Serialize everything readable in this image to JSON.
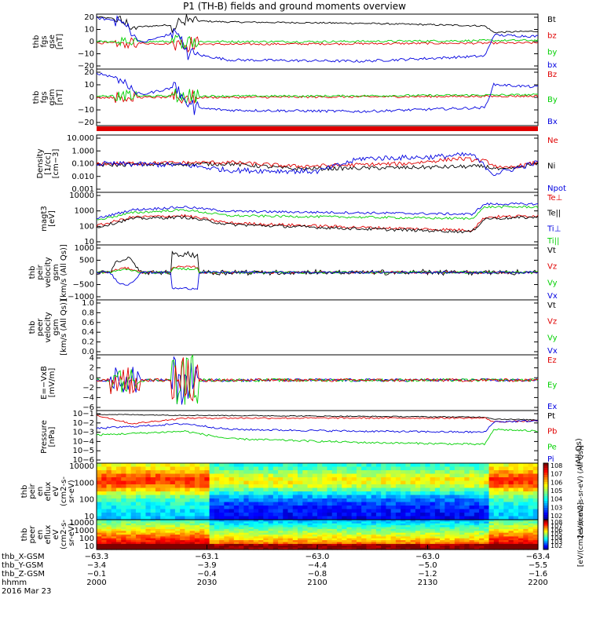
{
  "title": "P1 (TH-B) fields and ground moments overview",
  "colors": {
    "black": "#000000",
    "red": "#e00000",
    "green": "#00d000",
    "blue": "#0000e0"
  },
  "chart_data": [
    {
      "type": "line",
      "ylabel": [
        "thb",
        "fgs",
        "gse",
        "[nT]"
      ],
      "yticks": [
        "20",
        "10",
        "0",
        "−10",
        "−20"
      ],
      "ylim": [
        -20,
        22
      ],
      "series": [
        {
          "name": "Bt",
          "color": "black"
        },
        {
          "name": "bz",
          "color": "red"
        },
        {
          "name": "by",
          "color": "green"
        },
        {
          "name": "bx",
          "color": "blue"
        }
      ]
    },
    {
      "type": "line",
      "ylabel": [
        "thb",
        "fgs",
        "gsm",
        "[nT]"
      ],
      "yticks": [
        "20",
        "10",
        "0",
        "−10",
        "−20"
      ],
      "ylim": [
        -22,
        22
      ],
      "series": [
        {
          "name": "Bz",
          "color": "red"
        },
        {
          "name": "By",
          "color": "green"
        },
        {
          "name": "Bx",
          "color": "blue"
        }
      ]
    },
    {
      "type": "line",
      "log": true,
      "ylabel": [
        "Density",
        "[1/cc]",
        "[cm−3]"
      ],
      "yticks": [
        "10.000",
        "1.000",
        "0.100",
        "0.010",
        "0.001"
      ],
      "series": [
        {
          "name": "Ne",
          "color": "red"
        },
        {
          "name": "Ni",
          "color": "black"
        },
        {
          "name": "Npot",
          "color": "blue"
        }
      ]
    },
    {
      "type": "line",
      "log": true,
      "ylabel": [
        "magt3",
        "[eV]"
      ],
      "yticks": [
        "10000",
        "1000",
        "100",
        "10"
      ],
      "series": [
        {
          "name": "Te⊥",
          "color": "red"
        },
        {
          "name": "Te||",
          "color": "black"
        },
        {
          "name": "Ti⊥",
          "color": "blue"
        },
        {
          "name": "Ti||",
          "color": "green"
        }
      ]
    },
    {
      "type": "line",
      "ylabel": [
        "thb",
        "peir",
        "velocity",
        "gsm",
        "[km/s (All Qs)]"
      ],
      "yticks": [
        "1000",
        "500",
        "0",
        "−500",
        "−1000"
      ],
      "ylim": [
        -1000,
        1000
      ],
      "series": [
        {
          "name": "Vt",
          "color": "black"
        },
        {
          "name": "Vz",
          "color": "red"
        },
        {
          "name": "Vy",
          "color": "green"
        },
        {
          "name": "Vx",
          "color": "blue"
        }
      ]
    },
    {
      "type": "line",
      "ylabel": [
        "thb",
        "peer",
        "velocity",
        "gsm",
        "[km/s (All Qs)]"
      ],
      "yticks": [
        "1.0",
        "0.8",
        "0.6",
        "0.4",
        "0.2",
        "0.0"
      ],
      "ylim": [
        0,
        1
      ],
      "series": [
        {
          "name": "Vt",
          "color": "black"
        },
        {
          "name": "Vz",
          "color": "red"
        },
        {
          "name": "Vy",
          "color": "green"
        },
        {
          "name": "Vx",
          "color": "blue"
        }
      ]
    },
    {
      "type": "line",
      "ylabel": [
        "E=−VxB",
        "[mV/m]"
      ],
      "yticks": [
        "4",
        "2",
        "0",
        "−2",
        "−4",
        "−6"
      ],
      "ylim": [
        -6,
        5
      ],
      "series": [
        {
          "name": "Ez",
          "color": "red"
        },
        {
          "name": "Ey",
          "color": "green"
        },
        {
          "name": "Ex",
          "color": "blue"
        }
      ]
    },
    {
      "type": "line",
      "log": true,
      "ylabel": [
        "Pressure",
        "[nPa]"
      ],
      "yticks": [
        "10−1",
        "10−2",
        "10−3",
        "10−4",
        "10−5",
        "10−6"
      ],
      "series": [
        {
          "name": "Pt",
          "color": "black"
        },
        {
          "name": "Pb",
          "color": "red"
        },
        {
          "name": "Pe",
          "color": "green"
        },
        {
          "name": "Pi",
          "color": "blue"
        }
      ],
      "right_label": "(All Qs)"
    },
    {
      "type": "heatmap",
      "ylabel": [
        "thb",
        "peir",
        "en",
        "eflux",
        "eV",
        "(cm2-s-",
        "sr-eV)"
      ],
      "yticks": [
        "10000",
        "1000",
        "100",
        "10"
      ],
      "colorbar": {
        "ticks": [
          "108",
          "107",
          "106",
          "105",
          "104",
          "103",
          "102"
        ],
        "label": "[eV/(cm2-s-sr-eV) (All Qs)]"
      }
    },
    {
      "type": "heatmap",
      "ylabel": [
        "thb",
        "peer",
        "en",
        "eflux",
        "eV",
        "(cm2-s-",
        "sr-eV)"
      ],
      "yticks": [
        "10000",
        "1000",
        "100",
        "10"
      ],
      "colorbar": {
        "ticks": [
          "108",
          "107",
          "106",
          "105",
          "104",
          "103",
          "102"
        ],
        "label": "[eV/(cm2-s-sr-eV)]"
      }
    }
  ],
  "xaxis": {
    "rows": [
      {
        "name": "thb_X-GSM",
        "values": [
          "−63.3",
          "−63.1",
          "−63.0",
          "−63.0",
          "−63.4"
        ]
      },
      {
        "name": "thb_Y-GSM",
        "values": [
          "−3.4",
          "−3.9",
          "−4.4",
          "−5.0",
          "−5.5"
        ]
      },
      {
        "name": "thb_Z-GSM",
        "values": [
          "−0.1",
          "−0.4",
          "−0.8",
          "−1.2",
          "−1.6"
        ]
      },
      {
        "name": "hhmm",
        "values": [
          "2000",
          "2030",
          "2100",
          "2130",
          "2200"
        ]
      }
    ],
    "date": "2016 Mar 23"
  }
}
